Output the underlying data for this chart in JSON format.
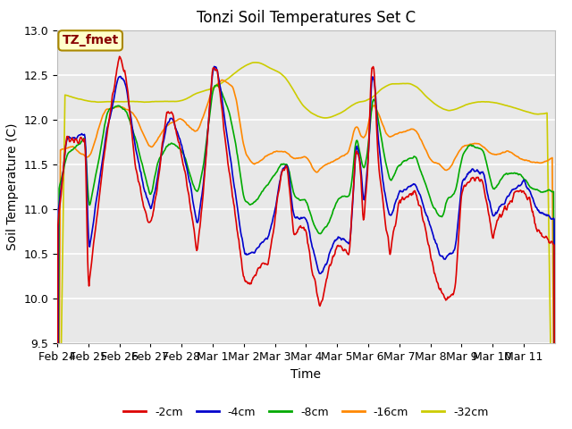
{
  "title": "Tonzi Soil Temperatures Set C",
  "xlabel": "Time",
  "ylabel": "Soil Temperature (C)",
  "ylim": [
    9.5,
    13.0
  ],
  "yticks": [
    9.5,
    10.0,
    10.5,
    11.0,
    11.5,
    12.0,
    12.5,
    13.0
  ],
  "xtick_labels": [
    "Feb 24",
    "Feb 25",
    "Feb 26",
    "Feb 27",
    "Feb 28",
    "Mar 1",
    "Mar 2",
    "Mar 3",
    "Mar 4",
    "Mar 5",
    "Mar 6",
    "Mar 7",
    "Mar 8",
    "Mar 9",
    "Mar 10",
    "Mar 11"
  ],
  "colors": {
    "-2cm": "#dd0000",
    "-4cm": "#0000cc",
    "-8cm": "#00aa00",
    "-16cm": "#ff8800",
    "-32cm": "#cccc00"
  },
  "annotation_text": "TZ_fmet",
  "annotation_color": "#880000",
  "annotation_bg": "#ffffcc",
  "annotation_edge": "#aa8800",
  "background_color": "#e8e8e8",
  "plot_bg_color": "#e8e8e8",
  "grid_color": "#ffffff",
  "title_fontsize": 12,
  "axis_label_fontsize": 10,
  "tick_fontsize": 9,
  "legend_fontsize": 9
}
